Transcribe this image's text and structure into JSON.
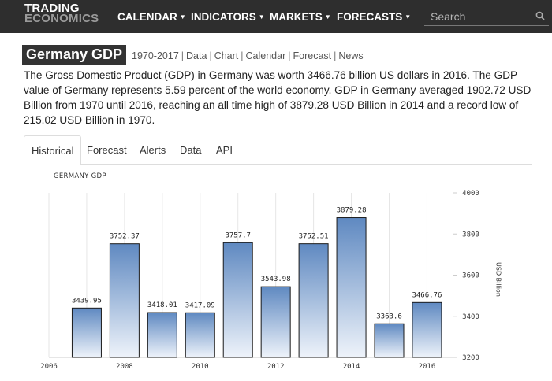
{
  "header": {
    "logo_line1": "TRADING",
    "logo_line2": "ECONOMICS",
    "nav": [
      {
        "label": "CALENDAR"
      },
      {
        "label": "INDICATORS"
      },
      {
        "label": "MARKETS"
      },
      {
        "label": "FORECASTS"
      }
    ],
    "search_placeholder": "Search"
  },
  "page": {
    "title": "Germany GDP",
    "sublinks": [
      "1970-2017",
      "Data",
      "Chart",
      "Calendar",
      "Forecast",
      "News"
    ],
    "description": "The Gross Domestic Product (GDP) in Germany was worth 3466.76 billion US dollars in 2016. The GDP value of Germany represents 5.59 percent of the world economy. GDP in Germany averaged 1902.72 USD Billion from 1970 until 2016, reaching an all time high of 3879.28 USD Billion in 2014 and a record low of 215.02 USD Billion in 1970."
  },
  "tabs": [
    {
      "label": "Historical",
      "active": true
    },
    {
      "label": "Forecast"
    },
    {
      "label": "Alerts"
    },
    {
      "label": "Data"
    },
    {
      "label": "API"
    }
  ],
  "colors": {
    "bar_top": "#5f89c1",
    "bar_bottom": "#eef3fa",
    "bar_stroke": "#1a1a1a",
    "topbar": "#2e2e2e"
  },
  "chart_data": {
    "type": "bar",
    "title": "GERMANY GDP",
    "ylabel": "USD Billion",
    "categories": [
      "2007",
      "2008",
      "2009",
      "2010",
      "2011",
      "2012",
      "2013",
      "2014",
      "2015",
      "2016"
    ],
    "values": [
      3439.95,
      3752.37,
      3418.01,
      3417.09,
      3757.7,
      3543.98,
      3752.51,
      3879.28,
      3363.6,
      3466.76
    ],
    "data_labels": [
      "3439.95",
      "3752.37",
      "3418.01",
      "3417.09",
      "3757.7",
      "3543.98",
      "3752.51",
      "3879.28",
      "3363.6",
      "3466.76"
    ],
    "xlim": [
      2006,
      2016.7
    ],
    "ylim": [
      3200,
      4000
    ],
    "x_ticks": [
      "2006",
      "2008",
      "2010",
      "2012",
      "2014",
      "2016"
    ],
    "y_ticks": [
      "4000",
      "3800",
      "3600",
      "3400",
      "3200"
    ],
    "y_axis_side": "right",
    "grid": "vertical"
  }
}
